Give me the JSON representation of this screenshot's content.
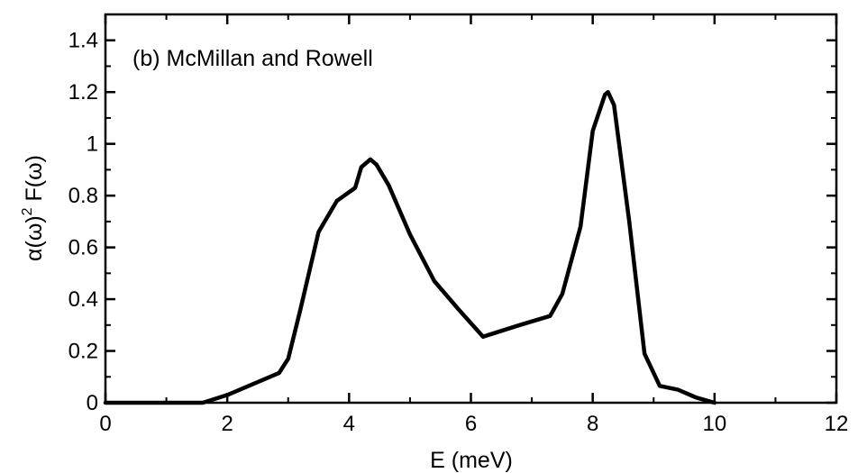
{
  "chart_data": {
    "type": "line",
    "annotation": "(b)  McMillan and Rowell",
    "xlabel": "E (meV)",
    "ylabel": {
      "alpha": "α",
      "omega1": "(ω)",
      "sup": "2",
      "F": " F",
      "omega2": "(ω)"
    },
    "xlim": [
      0,
      12
    ],
    "ylim": [
      0,
      1.5
    ],
    "x_ticks": [
      "0",
      "2",
      "4",
      "6",
      "8",
      "10",
      "12"
    ],
    "y_ticks": [
      "0",
      "0.2",
      "0.4",
      "0.6",
      "0.8",
      "1",
      "1.2",
      "1.4"
    ],
    "grid": false,
    "series": [
      {
        "color": "#000000",
        "x": [
          0,
          1.6,
          2.0,
          2.4,
          2.7,
          2.85,
          3.0,
          3.2,
          3.5,
          3.8,
          4.1,
          4.2,
          4.35,
          4.45,
          4.65,
          5.0,
          5.4,
          5.8,
          6.2,
          6.8,
          7.3,
          7.5,
          7.8,
          8.0,
          8.2,
          8.25,
          8.35,
          8.6,
          8.85,
          9.1,
          9.4,
          9.7,
          10.0
        ],
        "y": [
          0,
          0,
          0.03,
          0.07,
          0.1,
          0.115,
          0.17,
          0.36,
          0.66,
          0.78,
          0.83,
          0.91,
          0.94,
          0.92,
          0.84,
          0.65,
          0.47,
          0.36,
          0.255,
          0.3,
          0.335,
          0.42,
          0.68,
          1.05,
          1.19,
          1.2,
          1.15,
          0.7,
          0.19,
          0.065,
          0.05,
          0.02,
          0
        ]
      }
    ]
  }
}
